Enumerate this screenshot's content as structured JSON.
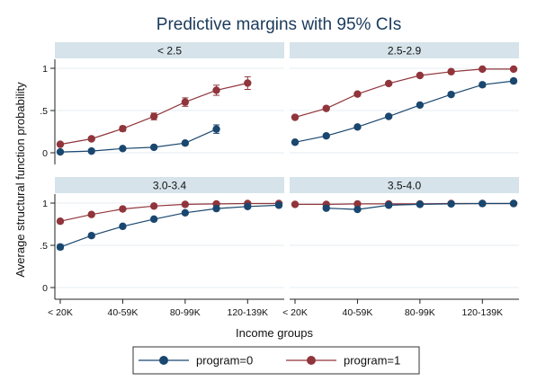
{
  "chart_data": {
    "type": "line",
    "title": "Predictive margins with 95% CIs",
    "xlabel": "Income groups",
    "ylabel": "Average structural function probability",
    "x_tick_labels": [
      "< 20K",
      "40-59K",
      "80-99K",
      "120-139K"
    ],
    "x_tick_positions": [
      1,
      3,
      5,
      7
    ],
    "x_range": [
      1,
      8
    ],
    "y_ticks": [
      0,
      0.5,
      1
    ],
    "y_tick_labels": [
      "0",
      ".5",
      "1"
    ],
    "y_range": [
      0,
      1
    ],
    "legend": {
      "placement": "bottom",
      "entries": [
        "program=0",
        "program=1"
      ]
    },
    "series_style": [
      {
        "name": "program=0",
        "color": "#1a476f"
      },
      {
        "name": "program=1",
        "color": "#90353b"
      }
    ],
    "panels": [
      {
        "label": "< 2.5",
        "series": [
          {
            "name": "program=0",
            "x": [
              1,
              2,
              3,
              4,
              5,
              6
            ],
            "values": [
              0.01,
              0.02,
              0.05,
              0.065,
              0.115,
              0.28
            ],
            "ci_low": [
              0.0,
              0.01,
              0.035,
              0.05,
              0.095,
              0.23
            ],
            "ci_high": [
              0.02,
              0.03,
              0.065,
              0.08,
              0.135,
              0.33
            ]
          },
          {
            "name": "program=1",
            "x": [
              1,
              2,
              3,
              4,
              5,
              6,
              7
            ],
            "values": [
              0.1,
              0.165,
              0.285,
              0.43,
              0.6,
              0.74,
              0.825
            ],
            "ci_low": [
              0.08,
              0.145,
              0.255,
              0.39,
              0.55,
              0.68,
              0.75
            ],
            "ci_high": [
              0.12,
              0.185,
              0.315,
              0.47,
              0.65,
              0.8,
              0.9
            ]
          }
        ]
      },
      {
        "label": "2.5-2.9",
        "series": [
          {
            "name": "program=0",
            "x": [
              1,
              2,
              3,
              4,
              5,
              6,
              7,
              8
            ],
            "values": [
              0.125,
              0.2,
              0.305,
              0.43,
              0.565,
              0.69,
              0.805,
              0.85
            ],
            "ci_low": [
              0.11,
              0.185,
              0.29,
              0.415,
              0.55,
              0.67,
              0.78,
              0.825
            ],
            "ci_high": [
              0.14,
              0.215,
              0.32,
              0.445,
              0.58,
              0.71,
              0.83,
              0.875
            ]
          },
          {
            "name": "program=1",
            "x": [
              1,
              2,
              3,
              4,
              5,
              6,
              7,
              8
            ],
            "values": [
              0.42,
              0.525,
              0.695,
              0.82,
              0.915,
              0.96,
              0.99,
              0.99
            ],
            "ci_low": [
              0.4,
              0.51,
              0.68,
              0.81,
              0.905,
              0.955,
              0.985,
              0.985
            ],
            "ci_high": [
              0.44,
              0.54,
              0.71,
              0.83,
              0.925,
              0.965,
              0.995,
              0.995
            ]
          }
        ]
      },
      {
        "label": "3.0-3.4",
        "series": [
          {
            "name": "program=0",
            "x": [
              1,
              2,
              3,
              4,
              5,
              6,
              7,
              8
            ],
            "values": [
              0.48,
              0.615,
              0.725,
              0.81,
              0.885,
              0.935,
              0.96,
              0.975
            ],
            "ci_low": [
              0.45,
              0.595,
              0.71,
              0.8,
              0.875,
              0.925,
              0.955,
              0.97
            ],
            "ci_high": [
              0.51,
              0.635,
              0.74,
              0.82,
              0.895,
              0.945,
              0.965,
              0.98
            ]
          },
          {
            "name": "program=1",
            "x": [
              1,
              2,
              3,
              4,
              5,
              6,
              7,
              8
            ],
            "values": [
              0.785,
              0.865,
              0.93,
              0.965,
              0.985,
              0.99,
              0.995,
              0.995
            ],
            "ci_low": [
              0.765,
              0.855,
              0.92,
              0.96,
              0.98,
              0.985,
              0.99,
              0.99
            ],
            "ci_high": [
              0.805,
              0.875,
              0.94,
              0.97,
              0.99,
              0.995,
              1.0,
              1.0
            ]
          }
        ]
      },
      {
        "label": "3.5-4.0",
        "series": [
          {
            "name": "program=0",
            "x": [
              2,
              3,
              4,
              5,
              6,
              7,
              8
            ],
            "values": [
              0.94,
              0.925,
              0.975,
              0.985,
              0.99,
              0.995,
              0.995
            ],
            "ci_low": [
              0.93,
              0.915,
              0.97,
              0.98,
              0.985,
              0.99,
              0.99
            ],
            "ci_high": [
              0.95,
              0.935,
              0.98,
              0.99,
              0.995,
              1.0,
              1.0
            ]
          },
          {
            "name": "program=1",
            "x": [
              1,
              2,
              3,
              4,
              5,
              6,
              7,
              8
            ],
            "values": [
              0.985,
              0.985,
              0.99,
              0.99,
              0.99,
              0.995,
              0.995,
              0.995
            ],
            "ci_low": [
              0.98,
              0.98,
              0.985,
              0.985,
              0.985,
              0.99,
              0.99,
              0.99
            ],
            "ci_high": [
              0.99,
              0.99,
              0.995,
              0.995,
              0.995,
              1.0,
              1.0,
              1.0
            ]
          }
        ]
      }
    ]
  }
}
